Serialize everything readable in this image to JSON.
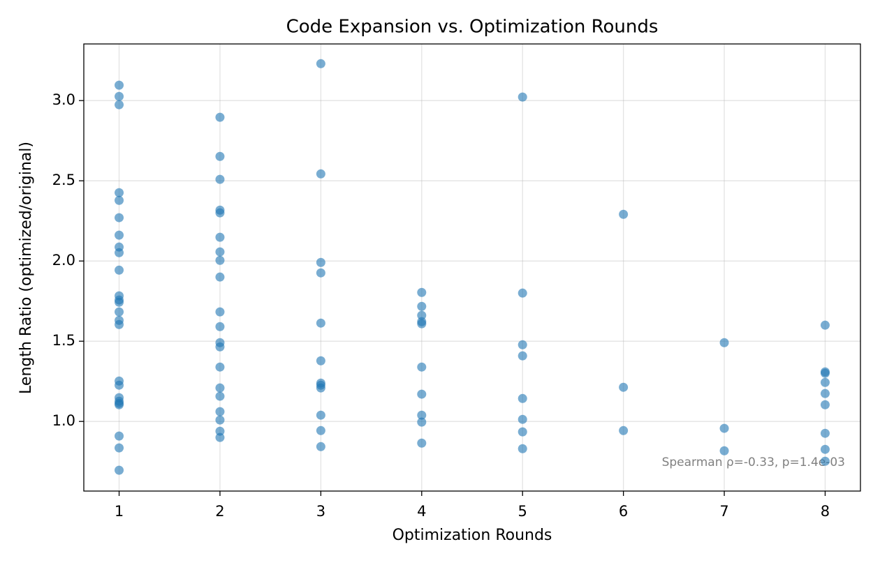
{
  "chart_data": {
    "type": "scatter",
    "title": "Code Expansion vs. Optimization Rounds",
    "x_label": "Optimization Rounds",
    "y_label": "Length Ratio (optimized/original)",
    "annotation": "Spearman ρ=-0.33, p=1.4e-03",
    "color": "#1f77b4",
    "grid": true,
    "xlim": [
      0.65,
      8.35
    ],
    "ylim": [
      0.566,
      3.353
    ],
    "xticks": [
      1,
      2,
      3,
      4,
      5,
      6,
      7,
      8
    ],
    "yticks": [
      {
        "value": 1.0,
        "label": "1.0"
      },
      1.5,
      {
        "value": 2.0,
        "label": "2.0"
      },
      2.5,
      {
        "value": 3.0,
        "label": "3.0"
      }
    ],
    "x": [
      1,
      1,
      1,
      1,
      1,
      1,
      1,
      1,
      1,
      1,
      1,
      1,
      1,
      1,
      1,
      1,
      1,
      1,
      1,
      1,
      1,
      1,
      1,
      1,
      1,
      2,
      2,
      2,
      2,
      2,
      2,
      2,
      2,
      2,
      2,
      2,
      2,
      2,
      2,
      2,
      2,
      2,
      2,
      2,
      2,
      3,
      3,
      3,
      3,
      3,
      3,
      3,
      3,
      3,
      3,
      3,
      3,
      4,
      4,
      4,
      4,
      4,
      4,
      4,
      4,
      4,
      4,
      5,
      5,
      5,
      5,
      5,
      5,
      5,
      5,
      6,
      6,
      6,
      7,
      7,
      7,
      8,
      8,
      8,
      8,
      8,
      8,
      8,
      8,
      8
    ],
    "values": [
      3.096,
      3.026,
      2.974,
      2.426,
      2.378,
      2.27,
      2.161,
      2.087,
      2.052,
      1.943,
      1.783,
      1.757,
      1.743,
      1.683,
      1.63,
      1.604,
      1.252,
      1.226,
      1.148,
      1.126,
      1.113,
      1.104,
      0.909,
      0.835,
      0.696,
      2.896,
      2.652,
      2.509,
      2.317,
      2.3,
      2.148,
      2.057,
      2.004,
      1.9,
      1.683,
      1.591,
      1.491,
      1.465,
      1.339,
      1.209,
      1.157,
      1.061,
      1.009,
      0.939,
      0.9,
      3.23,
      2.543,
      1.991,
      1.926,
      1.613,
      1.378,
      1.239,
      1.226,
      1.209,
      1.039,
      0.943,
      0.843,
      1.804,
      1.717,
      1.661,
      1.622,
      1.609,
      1.339,
      1.17,
      1.039,
      0.996,
      0.865,
      3.022,
      1.8,
      1.478,
      1.409,
      1.143,
      1.013,
      0.935,
      0.83,
      2.291,
      1.213,
      0.943,
      1.491,
      0.957,
      0.817,
      1.6,
      1.309,
      1.3,
      1.243,
      1.174,
      1.104,
      0.926,
      0.826,
      0.752
    ]
  }
}
